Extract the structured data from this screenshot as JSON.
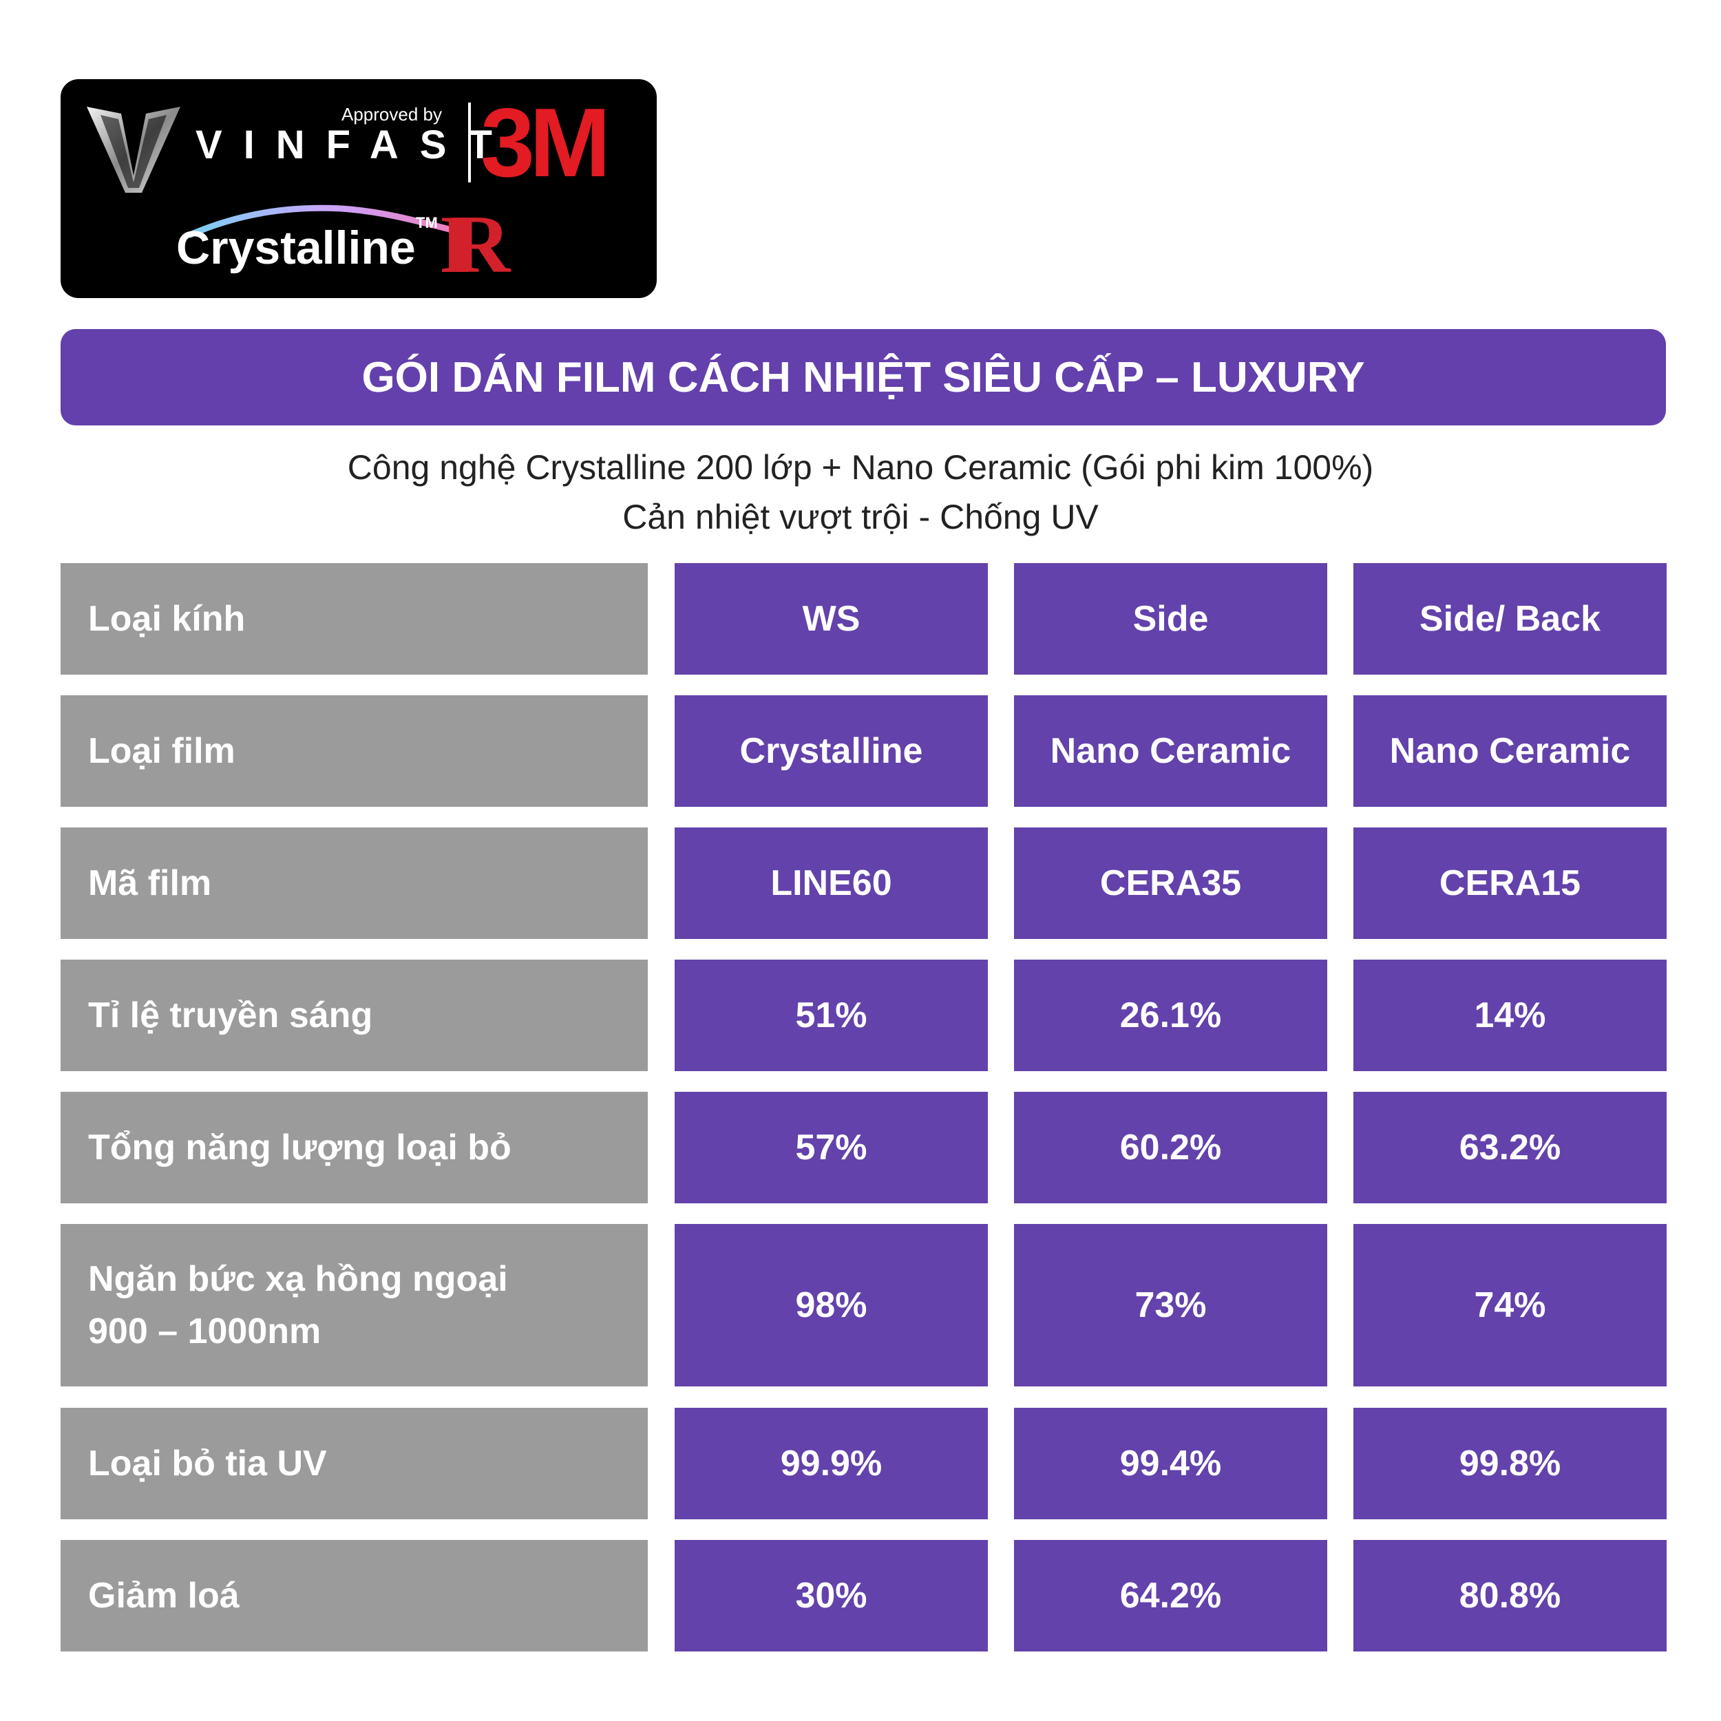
{
  "logo": {
    "approved_by": "Approved by",
    "vinfast": "VINFAST",
    "brand_3m": "3M",
    "crystalline": "Crystalline",
    "trademark": "TM",
    "ir": "IR"
  },
  "title": "GÓI DÁN FILM CÁCH NHIỆT SIÊU CẤP – LUXURY",
  "subtitle_line1": "Công nghệ Crystalline 200 lớp + Nano Ceramic (Gói phi kim 100%)",
  "subtitle_line2": "Cản nhiệt vượt trội - Chống UV",
  "table": {
    "rows": [
      {
        "label": "Loại kính",
        "values": [
          "WS",
          "Side",
          "Side/ Back"
        ]
      },
      {
        "label": "Loại film",
        "values": [
          "Crystalline",
          "Nano Ceramic",
          "Nano Ceramic"
        ]
      },
      {
        "label": "Mã film",
        "values": [
          "LINE60",
          "CERA35",
          "CERA15"
        ]
      },
      {
        "label": "Tỉ lệ truyền sáng",
        "values": [
          "51%",
          "26.1%",
          "14%"
        ]
      },
      {
        "label": "Tổng năng lượng loại bỏ",
        "values": [
          "57%",
          "60.2%",
          "63.2%"
        ]
      },
      {
        "label_lines": [
          "Ngăn bức xạ hồng ngoại",
          "900 – 1000nm"
        ],
        "values": [
          "98%",
          "73%",
          "74%"
        ]
      },
      {
        "label": "Loại bỏ tia UV",
        "values": [
          "99.9%",
          "99.4%",
          "99.8%"
        ]
      },
      {
        "label": "Giảm loá",
        "values": [
          "30%",
          "64.2%",
          "80.8%"
        ]
      }
    ]
  }
}
